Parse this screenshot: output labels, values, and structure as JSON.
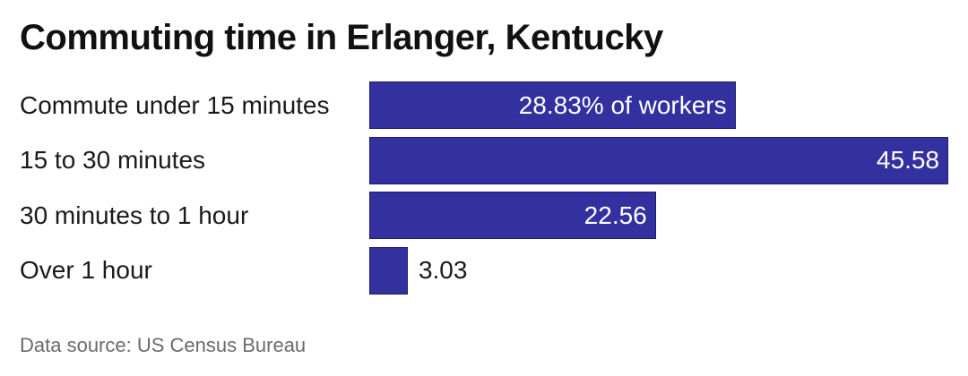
{
  "chart_data": {
    "type": "bar",
    "orientation": "horizontal",
    "title": "Commuting time in Erlanger, Kentucky",
    "categories": [
      "Commute under 15 minutes",
      "15 to 30 minutes",
      "30 minutes to 1 hour",
      "Over 1 hour"
    ],
    "values": [
      28.83,
      45.58,
      22.56,
      3.03
    ],
    "value_labels": [
      "28.83% of workers",
      "45.58",
      "22.56",
      "3.03"
    ],
    "xlim": [
      0,
      45.58
    ],
    "xlabel": "",
    "ylabel": "",
    "grid": false,
    "legend": "none",
    "bar_color": "#3330a0",
    "source": "Data source: US Census Bureau"
  }
}
